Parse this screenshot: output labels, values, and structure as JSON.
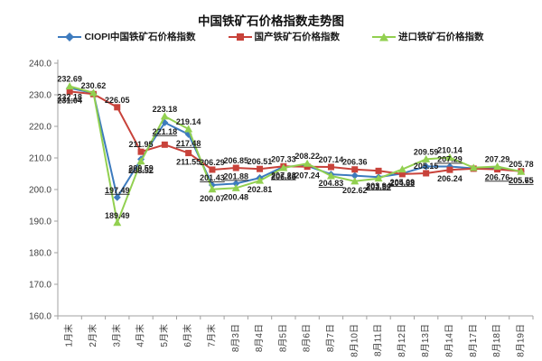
{
  "title": "中国铁矿石价格指数走势图",
  "yticks": [
    "240.0",
    "230.0",
    "220.0",
    "210.0",
    "200.0",
    "190.0",
    "180.0",
    "170.0",
    "160.0"
  ],
  "legend": [
    {
      "name": "CIOPI中国铁矿石价格指数"
    },
    {
      "name": "国产铁矿石价格指数"
    },
    {
      "name": "进口铁矿石价格指数"
    }
  ],
  "colors": {
    "ciopi": "#3D7BBE",
    "domestic": "#C8423A",
    "import": "#92D050",
    "axis": "#A0A0A0",
    "tick_text": "#3F3F3F",
    "label_text": "#1F1F1F"
  },
  "chart_data": {
    "type": "line",
    "title": "中国铁矿石价格指数走势图",
    "xlabel": "",
    "ylabel": "",
    "ylim": [
      160,
      240
    ],
    "ytick_step": 10,
    "grid": false,
    "legend_position": "top",
    "categories": [
      "1月末",
      "2月末",
      "3月末",
      "4月末",
      "5月末",
      "6月末",
      "7月末",
      "8月3日",
      "8月4日",
      "8月5日",
      "8月6日",
      "8月7日",
      "8月10日",
      "8月11日",
      "8月12日",
      "8月13日",
      "8月14日",
      "8月17日",
      "8月18日",
      "8月19日"
    ],
    "series": [
      {
        "name": "CIOPI中国铁矿石价格指数",
        "color": "#3D7BBE",
        "marker": "diamond",
        "underline_labels": true,
        "values": [
          232.18,
          230.5,
          197.49,
          209.59,
          221.18,
          217.48,
          201.43,
          201.88,
          203.7,
          207.23,
          207.5,
          204.83,
          204.4,
          203.94,
          205.09,
          207.3,
          207.29,
          206.7,
          206.76,
          205.75
        ],
        "labels": [
          "232.18",
          "",
          "197.49",
          "209.59",
          "221.18",
          "217.48",
          "201.43",
          "201.88",
          "",
          "207.23",
          "",
          "204.83",
          "",
          "203.94",
          "205.09",
          "",
          "207.29",
          "",
          "206.76",
          "205.75"
        ],
        "label_pos": [
          "below",
          "",
          "above",
          "below",
          "below",
          "below",
          "above",
          "above",
          "",
          "below",
          "",
          "below",
          "",
          "below",
          "below",
          "",
          "above",
          "",
          "below",
          "below"
        ]
      },
      {
        "name": "国产铁矿石价格指数",
        "color": "#C8423A",
        "marker": "square",
        "underline_labels": false,
        "values": [
          231.04,
          230.2,
          226.05,
          211.95,
          214.2,
          211.55,
          206.29,
          206.85,
          206.51,
          207.33,
          207.24,
          207.14,
          206.36,
          205.9,
          204.88,
          205.15,
          206.24,
          206.6,
          206.4,
          205.78
        ],
        "labels": [
          "231.04",
          "",
          "226.05",
          "211.95",
          "",
          "211.55",
          "206.29",
          "206.85",
          "206.51",
          "207.33",
          "207.24",
          "207.14",
          "206.36",
          "",
          "204.88",
          "205.15",
          "206.24",
          "",
          "",
          "205.78"
        ],
        "label_pos": [
          "below",
          "",
          "above",
          "above",
          "",
          "below",
          "above",
          "above",
          "above",
          "above",
          "below",
          "above",
          "above",
          "",
          "below",
          "above",
          "below",
          "",
          "",
          "above"
        ]
      },
      {
        "name": "进口铁矿石价格指数",
        "color": "#92D050",
        "marker": "triangle",
        "underline_labels": false,
        "values": [
          232.69,
          230.62,
          189.49,
          208.92,
          223.18,
          219.14,
          200.07,
          200.48,
          202.81,
          206.86,
          208.22,
          204.3,
          202.62,
          203.52,
          206.4,
          209.59,
          210.14,
          206.9,
          207.29,
          205.65
        ],
        "labels": [
          "232.69",
          "230.62",
          "189.49",
          "208.92",
          "223.18",
          "219.14",
          "200.07",
          "200.48",
          "202.81",
          "206.86",
          "208.22",
          "",
          "202.62",
          "203.52",
          "",
          "209.59",
          "210.14",
          "",
          "207.29",
          "205.65"
        ],
        "label_pos": [
          "above",
          "above",
          "above",
          "below",
          "above",
          "above",
          "below",
          "below",
          "below",
          "below",
          "above",
          "",
          "below",
          "below",
          "",
          "above",
          "above",
          "",
          "above",
          "below"
        ]
      }
    ]
  }
}
